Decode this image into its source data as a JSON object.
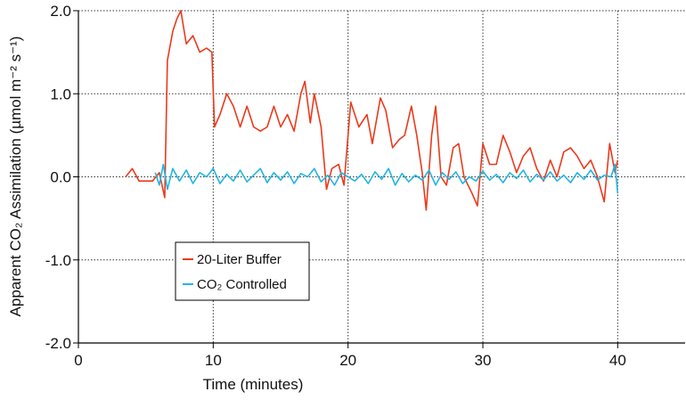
{
  "chart_data": {
    "type": "line",
    "x_label": "Time (minutes)",
    "y_label": "Apparent CO₂ Assimilation (µmol m⁻² s⁻¹)",
    "xlim": [
      0,
      45
    ],
    "xticks": [
      0,
      10,
      20,
      30,
      40
    ],
    "ylim": [
      -2,
      2
    ],
    "yticks": [
      {
        "value": -2,
        "label": "-2.0"
      },
      {
        "value": -1,
        "label": "-1.0"
      },
      {
        "value": 0,
        "label": "0.0"
      },
      {
        "value": 1,
        "label": "1.0"
      },
      {
        "value": 2,
        "label": "2.0"
      }
    ],
    "grid": true,
    "legend": "lower left",
    "series": [
      {
        "name": "20-Liter Buffer",
        "color": "#ea3a1c",
        "x": [
          3.5,
          4,
          4.5,
          5,
          5.5,
          6,
          6.4,
          6.6,
          7,
          7.3,
          7.6,
          8,
          8.5,
          9,
          9.5,
          9.9,
          10.1,
          10.5,
          11,
          11.5,
          12,
          12.5,
          13,
          13.5,
          14,
          14.5,
          15,
          15.5,
          16,
          16.5,
          16.8,
          17.2,
          17.5,
          18,
          18.4,
          18.8,
          19.3,
          19.7,
          20.2,
          20.8,
          21.4,
          21.8,
          22.4,
          22.8,
          23.3,
          23.8,
          24.2,
          24.7,
          25.1,
          25.5,
          25.8,
          26.2,
          26.5,
          26.9,
          27.3,
          27.8,
          28.2,
          28.6,
          29.2,
          29.6,
          30,
          30.5,
          31,
          31.5,
          32,
          32.5,
          33,
          33.5,
          34,
          34.5,
          35,
          35.5,
          36,
          36.5,
          37,
          37.5,
          38,
          38.5,
          39,
          39.4,
          39.8,
          40
        ],
        "values": [
          0,
          0.1,
          -0.05,
          -0.05,
          -0.05,
          0.05,
          -0.25,
          1.4,
          1.75,
          1.9,
          2,
          1.6,
          1.7,
          1.5,
          1.55,
          1.5,
          0.6,
          0.75,
          1,
          0.85,
          0.6,
          0.85,
          0.6,
          0.55,
          0.6,
          0.85,
          0.6,
          0.75,
          0.55,
          1,
          1.15,
          0.65,
          1,
          0.6,
          -0.15,
          0.1,
          0.15,
          -0.1,
          0.9,
          0.6,
          0.75,
          0.4,
          0.95,
          0.8,
          0.35,
          0.45,
          0.5,
          0.85,
          0.5,
          0.05,
          -0.4,
          0.5,
          0.85,
          0,
          -0.1,
          0.35,
          0.4,
          0,
          -0.2,
          -0.35,
          0.4,
          0.15,
          0.15,
          0.5,
          0.3,
          0.05,
          0.25,
          0.35,
          0.1,
          -0.05,
          0.2,
          0,
          0.3,
          0.35,
          0.25,
          0.1,
          0.2,
          0,
          -0.3,
          0.4,
          0.05,
          0.2
        ]
      },
      {
        "name": "CO₂ Controlled",
        "color": "#21b5e2",
        "x": [
          5.7,
          6,
          6.3,
          6.6,
          7,
          7.5,
          8,
          8.5,
          9,
          9.5,
          10,
          10.5,
          11,
          11.5,
          12,
          12.5,
          13,
          13.5,
          14,
          14.5,
          15,
          15.5,
          16,
          16.5,
          17,
          17.5,
          18,
          18.5,
          19,
          19.5,
          20,
          20.5,
          21,
          21.5,
          22,
          22.5,
          23,
          23.5,
          24,
          24.5,
          25,
          25.5,
          26,
          26.5,
          27,
          27.5,
          28,
          28.5,
          29,
          29.5,
          30,
          30.5,
          31,
          31.5,
          32,
          32.5,
          33,
          33.5,
          34,
          34.5,
          35,
          35.5,
          36,
          36.5,
          37,
          37.5,
          38,
          38.5,
          39,
          39.5,
          39.8,
          40
        ],
        "values": [
          0.05,
          -0.1,
          0.15,
          -0.15,
          0.1,
          -0.05,
          0.08,
          -0.08,
          0.05,
          0,
          0.1,
          -0.08,
          0.03,
          -0.05,
          0.08,
          -0.06,
          0.02,
          0.1,
          -0.07,
          0.05,
          -0.04,
          0.06,
          -0.08,
          0.04,
          0,
          0.1,
          -0.06,
          0.02,
          -0.1,
          0.05,
          0,
          -0.05,
          0.03,
          -0.08,
          0.06,
          -0.03,
          0.1,
          -0.1,
          0.04,
          -0.06,
          0.02,
          -0.04,
          0.08,
          -0.1,
          0.05,
          -0.03,
          0.06,
          -0.08,
          0,
          -0.05,
          0.07,
          -0.04,
          0.03,
          -0.07,
          0.05,
          -0.02,
          0.08,
          -0.06,
          0.03,
          -0.04,
          0.06,
          -0.05,
          0.02,
          -0.07,
          0.05,
          -0.03,
          0.08,
          -0.04,
          0.02,
          0,
          0.15,
          -0.2
        ]
      }
    ]
  }
}
